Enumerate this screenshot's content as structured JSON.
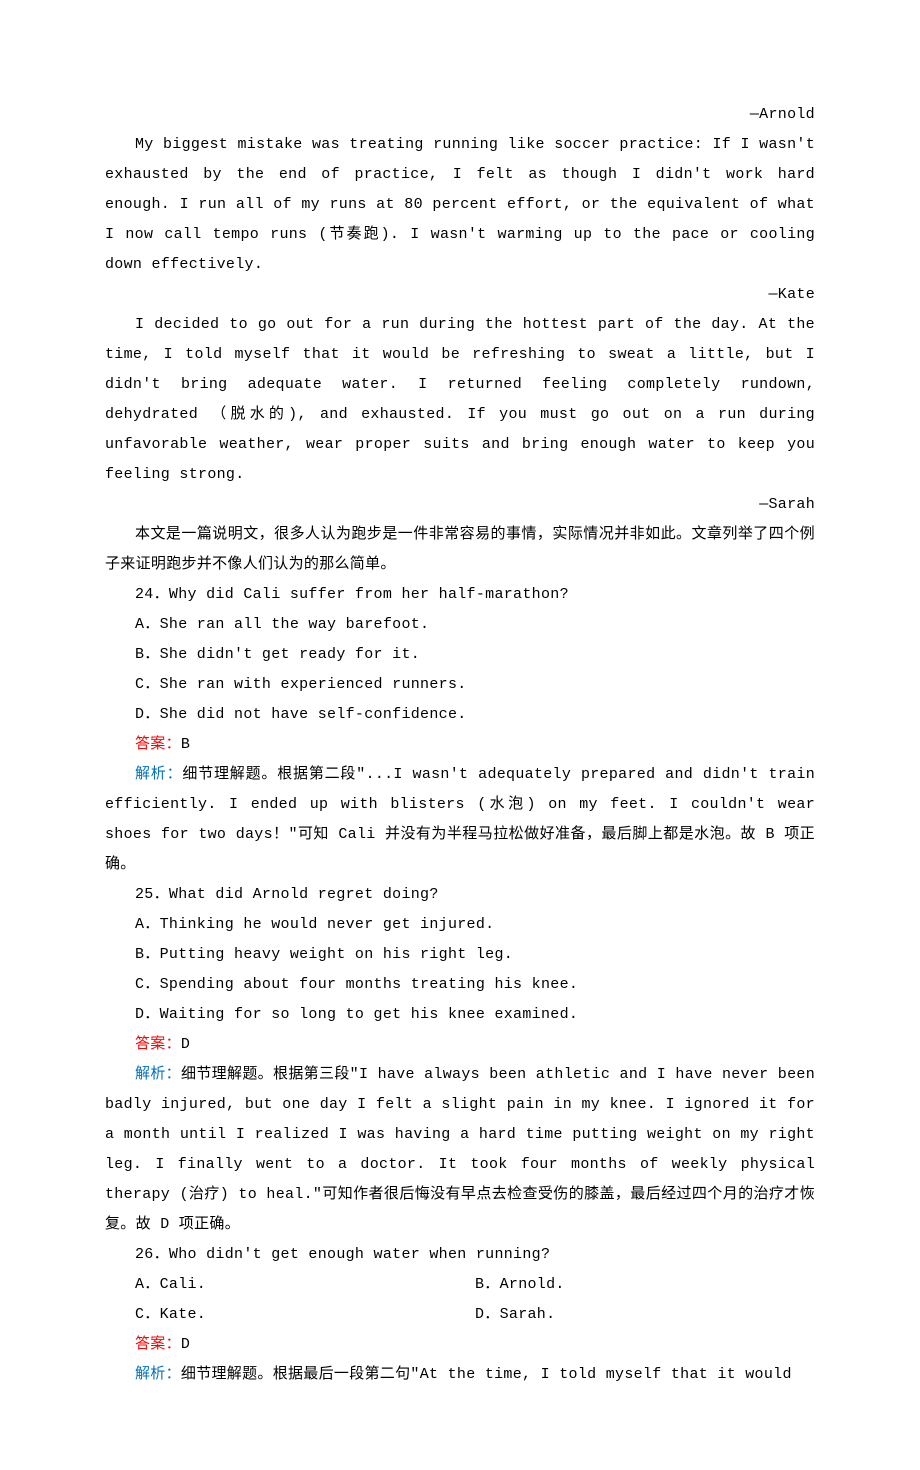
{
  "attribution1": "—Arnold",
  "para1": "My biggest mistake was treating running like soccer practice: If I wasn't exhausted by the end of practice, I felt as though I didn't work hard enough. I run all of my runs at 80 percent effort, or the equivalent of what I now call tempo runs (节奏跑). I wasn't warming up to the pace or cooling down effectively.",
  "attribution2": "—Kate",
  "para2": "I decided to go out for a run during the hottest part of the day. At the time, I told myself that it would be refreshing to sweat a little, but I didn't bring adequate water. I returned feeling completely rundown, dehydrated （脱水的), and exhausted. If you must go out on a run during unfavorable weather, wear proper suits and bring enough water to keep you feeling strong.",
  "attribution3": "—Sarah",
  "intro": "本文是一篇说明文，很多人认为跑步是一件非常容易的事情，实际情况并非如此。文章列举了四个例子来证明跑步并不像人们认为的那么简单。",
  "q24": {
    "stem": "24．Why did Cali suffer from her half-marathon?",
    "optA": "A．She ran all the way barefoot.",
    "optB": "B．She didn't get ready for it.",
    "optC": "C．She ran with experienced runners.",
    "optD": "D．She did not have self-confidence.",
    "ansLabel": "答案：",
    "ansVal": "B",
    "expLabel": "解析：",
    "expText": "细节理解题。根据第二段\"...I wasn't adequately prepared and didn't train efficiently. I ended up with blisters (水泡) on my feet. I couldn't wear shoes for two days！\"可知 Cali 并没有为半程马拉松做好准备，最后脚上都是水泡。故 B 项正确。"
  },
  "q25": {
    "stem": "25．What did Arnold regret doing?",
    "optA": "A．Thinking he would never get injured.",
    "optB": "B．Putting heavy weight on his right leg.",
    "optC": "C．Spending about four months treating his knee.",
    "optD": "D．Waiting for so long to get his knee examined.",
    "ansLabel": "答案：",
    "ansVal": "D",
    "expLabel": "解析：",
    "expText": "细节理解题。根据第三段\"I have always been athletic and I have never been badly injured, but one day I felt a slight pain in my knee. I ignored it for a month until I realized I was having a hard time putting weight on my right leg. I finally went to a doctor. It took four months of weekly physical therapy (治疗) to heal.\"可知作者很后悔没有早点去检查受伤的膝盖，最后经过四个月的治疗才恢复。故 D 项正确。"
  },
  "q26": {
    "stem": "26．Who didn't get enough water when running?",
    "optA": "A．Cali.",
    "optB": "B．Arnold.",
    "optC": "C．Kate.",
    "optD": "D．Sarah.",
    "ansLabel": "答案：",
    "ansVal": "D",
    "expLabel": "解析：",
    "expText": "细节理解题。根据最后一段第二句\"At the time, I told myself that it would"
  }
}
